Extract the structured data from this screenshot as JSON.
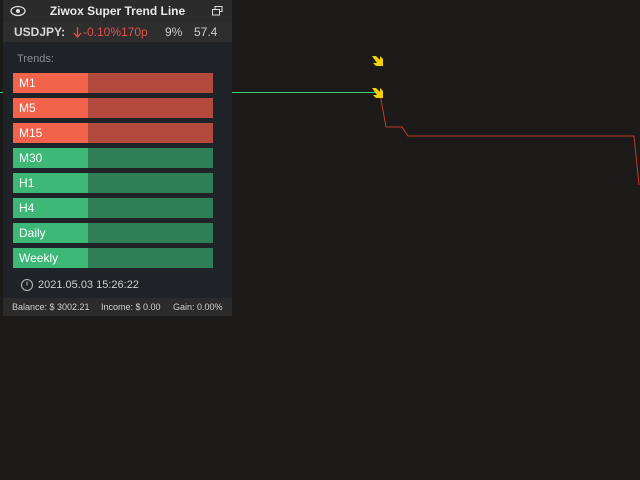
{
  "header": {
    "title": "Ziwox Super Trend Line"
  },
  "quote": {
    "symbol": "USDJPY:",
    "change": "-0.10%",
    "pips": "170p",
    "strength": "9%",
    "score": "57.4"
  },
  "trends": {
    "label": "Trends:",
    "rows": [
      {
        "label": "M1",
        "trend": "down"
      },
      {
        "label": "M5",
        "trend": "down"
      },
      {
        "label": "M15",
        "trend": "down"
      },
      {
        "label": "M30",
        "trend": "up"
      },
      {
        "label": "H1",
        "trend": "up"
      },
      {
        "label": "H4",
        "trend": "up"
      },
      {
        "label": "Daily",
        "trend": "up"
      },
      {
        "label": "Weekly",
        "trend": "up"
      }
    ]
  },
  "timestamp": "2021.05.03 15:26:22",
  "footer": {
    "balance": "Balance: $ 3002.21",
    "income": "Income: $ 0.00",
    "gain": "Gain: 0.00%"
  }
}
